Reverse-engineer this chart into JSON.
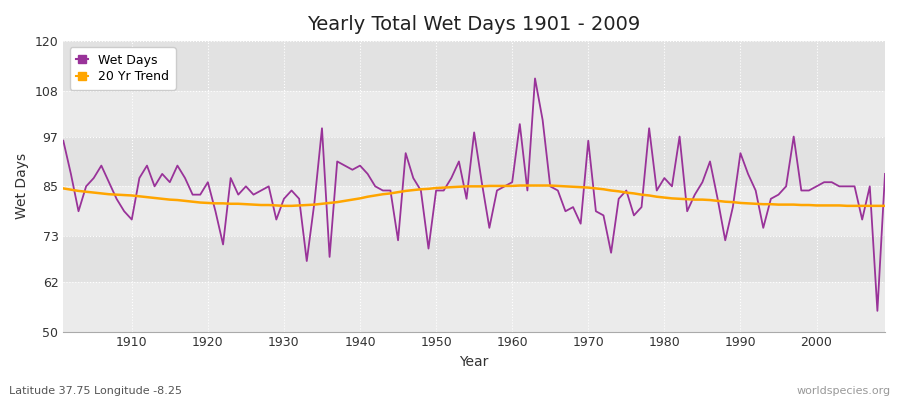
{
  "title": "Yearly Total Wet Days 1901 - 2009",
  "xlabel": "Year",
  "ylabel": "Wet Days",
  "footnote_left": "Latitude 37.75 Longitude -8.25",
  "footnote_right": "worldspecies.org",
  "wet_days_color": "#993399",
  "trend_color": "#FFA500",
  "bg_color": "#ffffff",
  "plot_bg_color": "#ebebeb",
  "band_color_light": "#e2e2e2",
  "band_color_dark": "#ebebeb",
  "ylim": [
    50,
    120
  ],
  "yticks": [
    50,
    62,
    73,
    85,
    97,
    108,
    120
  ],
  "years": [
    1901,
    1902,
    1903,
    1904,
    1905,
    1906,
    1907,
    1908,
    1909,
    1910,
    1911,
    1912,
    1913,
    1914,
    1915,
    1916,
    1917,
    1918,
    1919,
    1920,
    1921,
    1922,
    1923,
    1924,
    1925,
    1926,
    1927,
    1928,
    1929,
    1930,
    1931,
    1932,
    1933,
    1934,
    1935,
    1936,
    1937,
    1938,
    1939,
    1940,
    1941,
    1942,
    1943,
    1944,
    1945,
    1946,
    1947,
    1948,
    1949,
    1950,
    1951,
    1952,
    1953,
    1954,
    1955,
    1956,
    1957,
    1958,
    1959,
    1960,
    1961,
    1962,
    1963,
    1964,
    1965,
    1966,
    1967,
    1968,
    1969,
    1970,
    1971,
    1972,
    1973,
    1974,
    1975,
    1976,
    1977,
    1978,
    1979,
    1980,
    1981,
    1982,
    1983,
    1984,
    1985,
    1986,
    1987,
    1988,
    1989,
    1990,
    1991,
    1992,
    1993,
    1994,
    1995,
    1996,
    1997,
    1998,
    1999,
    2000,
    2001,
    2002,
    2003,
    2004,
    2005,
    2006,
    2007,
    2008,
    2009
  ],
  "wet_days": [
    96,
    88,
    79,
    85,
    87,
    90,
    86,
    82,
    79,
    77,
    87,
    90,
    85,
    88,
    86,
    90,
    87,
    83,
    83,
    86,
    79,
    71,
    87,
    83,
    85,
    83,
    84,
    85,
    77,
    82,
    84,
    82,
    67,
    81,
    99,
    68,
    91,
    90,
    89,
    90,
    88,
    85,
    84,
    84,
    72,
    93,
    87,
    84,
    70,
    84,
    84,
    87,
    91,
    82,
    98,
    86,
    75,
    84,
    85,
    86,
    100,
    84,
    111,
    101,
    85,
    84,
    79,
    80,
    76,
    96,
    79,
    78,
    69,
    82,
    84,
    78,
    80,
    99,
    84,
    87,
    85,
    97,
    79,
    83,
    86,
    91,
    82,
    72,
    80,
    93,
    88,
    84,
    75,
    82,
    83,
    85,
    97,
    84,
    84,
    85,
    86,
    86,
    85,
    85,
    85,
    77,
    85,
    55,
    88
  ],
  "trend": [
    84.5,
    84.2,
    83.9,
    83.7,
    83.5,
    83.3,
    83.1,
    83.0,
    82.9,
    82.8,
    82.6,
    82.4,
    82.2,
    82.0,
    81.8,
    81.7,
    81.5,
    81.3,
    81.1,
    81.0,
    80.9,
    80.9,
    80.8,
    80.8,
    80.7,
    80.6,
    80.5,
    80.5,
    80.4,
    80.3,
    80.3,
    80.4,
    80.5,
    80.6,
    80.8,
    81.0,
    81.2,
    81.5,
    81.8,
    82.1,
    82.5,
    82.8,
    83.1,
    83.3,
    83.6,
    83.9,
    84.1,
    84.3,
    84.4,
    84.6,
    84.7,
    84.8,
    84.9,
    85.0,
    85.0,
    85.0,
    85.1,
    85.1,
    85.1,
    85.1,
    85.2,
    85.2,
    85.2,
    85.2,
    85.2,
    85.1,
    85.0,
    84.9,
    84.8,
    84.7,
    84.5,
    84.3,
    84.0,
    83.8,
    83.5,
    83.3,
    83.0,
    82.8,
    82.5,
    82.3,
    82.1,
    82.0,
    81.9,
    81.8,
    81.8,
    81.7,
    81.5,
    81.3,
    81.2,
    81.0,
    80.9,
    80.8,
    80.7,
    80.7,
    80.6,
    80.6,
    80.6,
    80.5,
    80.5,
    80.4,
    80.4,
    80.4,
    80.4,
    80.3,
    80.3,
    80.3,
    80.3,
    80.3,
    80.3
  ]
}
